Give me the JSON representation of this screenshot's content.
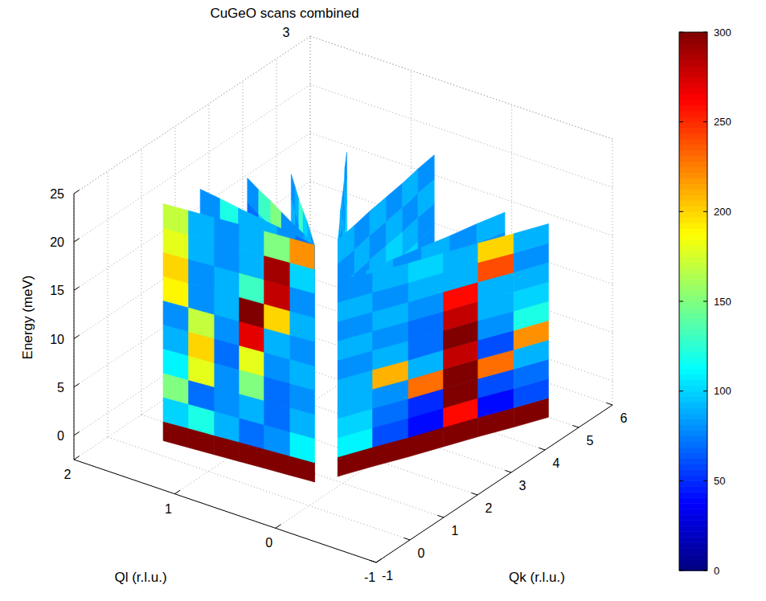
{
  "chart_data": {
    "type": "surface",
    "title": "CuGeO  scans combined",
    "subtitle": "3",
    "xlabel": "Ql (r.l.u.)",
    "ylabel": "Qk (r.l.u.)",
    "zlabel": "Energy (meV)",
    "xlim": [
      -1,
      2
    ],
    "ylim": [
      -1,
      6
    ],
    "zlim": [
      -2.5,
      25
    ],
    "xticks": [
      -1,
      0,
      1,
      2
    ],
    "yticks": [
      -1,
      0,
      1,
      2,
      3,
      4,
      5,
      6
    ],
    "zticks": [
      0,
      5,
      10,
      15,
      20,
      25
    ],
    "grid": true,
    "colorbar": {
      "range": [
        0,
        300
      ],
      "ticks": [
        0,
        50,
        100,
        150,
        200,
        250,
        300
      ]
    },
    "slices": [
      {
        "ql": [
          0.1,
          0.23,
          0.37,
          0.5,
          0.63,
          0.77,
          0.9
        ],
        "qk": [
          1.15,
          1.59,
          2.03,
          2.48,
          2.92,
          3.36,
          3.8
        ],
        "energy": [
          -2.5,
          -0.5,
          2,
          4.5,
          7,
          9.5,
          12,
          14.5,
          17,
          19.5,
          22
        ],
        "cells": [
          [
            300,
            300,
            300,
            300,
            300,
            300
          ],
          [
            130,
            90,
            70,
            60,
            70,
            80
          ],
          [
            100,
            80,
            70,
            60,
            70,
            90
          ],
          [
            90,
            110,
            200,
            170,
            90,
            80
          ],
          [
            80,
            90,
            100,
            190,
            110,
            80
          ],
          [
            90,
            80,
            90,
            100,
            160,
            90
          ],
          [
            80,
            90,
            80,
            90,
            110,
            100
          ],
          [
            90,
            80,
            90,
            80,
            90,
            100
          ],
          [
            80,
            90,
            80,
            90,
            80,
            90
          ],
          [
            90,
            80,
            90,
            80,
            90,
            80
          ]
        ]
      },
      {
        "ql": [
          0.1,
          0.13,
          0.17,
          0.2,
          0.23,
          0.27,
          0.3
        ],
        "qk": [
          1.15,
          1.73,
          2.3,
          2.88,
          3.45,
          4.03,
          4.6
        ],
        "energy": [
          -2.5,
          -0.5,
          2,
          4.5,
          7,
          9.5,
          12,
          14.5,
          17,
          19.5,
          22
        ],
        "cells": [
          [
            300,
            300,
            300,
            300,
            300,
            300
          ],
          [
            120,
            70,
            50,
            40,
            60,
            80
          ],
          [
            110,
            60,
            40,
            50,
            70,
            90
          ],
          [
            230,
            140,
            60,
            50,
            80,
            120
          ],
          [
            120,
            90,
            70,
            60,
            110,
            100
          ],
          [
            90,
            80,
            70,
            90,
            150,
            90
          ],
          [
            80,
            90,
            100,
            130,
            100,
            80
          ],
          [
            90,
            80,
            90,
            100,
            90,
            80
          ],
          [
            80,
            90,
            80,
            90,
            80,
            90
          ],
          [
            90,
            80,
            90,
            80,
            90,
            80
          ]
        ]
      },
      {
        "ql": [
          0.1,
          0.03,
          -0.03,
          -0.1,
          -0.17,
          -0.23,
          -0.3
        ],
        "qk": [
          1.15,
          1.78,
          2.4,
          3.03,
          3.65,
          4.28,
          4.9
        ],
        "energy": [
          -2.5,
          -0.5,
          1.5,
          3.5,
          5.5,
          7.5,
          9.5,
          11.5,
          13.5,
          15.5,
          17.5
        ],
        "cells": [
          [
            300,
            300,
            300,
            300,
            300,
            300
          ],
          [
            100,
            60,
            50,
            60,
            120,
            150
          ],
          [
            90,
            70,
            60,
            70,
            140,
            130
          ],
          [
            80,
            60,
            70,
            80,
            120,
            110
          ],
          [
            90,
            70,
            60,
            90,
            100,
            90
          ],
          [
            80,
            80,
            70,
            110,
            90,
            80
          ],
          [
            90,
            80,
            90,
            130,
            80,
            90
          ],
          [
            80,
            90,
            110,
            90,
            80,
            90
          ],
          [
            90,
            100,
            90,
            80,
            90,
            80
          ],
          [
            80,
            90,
            80,
            90,
            80,
            90
          ]
        ]
      },
      {
        "ql": [
          0.1,
          -0.03,
          -0.17,
          -0.3,
          -0.43,
          -0.57,
          -0.7
        ],
        "qk": [
          1.15,
          1.79,
          2.43,
          3.08,
          3.72,
          4.36,
          5.0
        ],
        "energy": [
          -2.5,
          -0.5,
          1.5,
          3.5,
          5.5,
          7.5,
          9.5,
          11.5,
          13.5,
          15.5,
          17.5
        ],
        "cells": [
          [
            300,
            300,
            300,
            300,
            300,
            300
          ],
          [
            110,
            60,
            40,
            260,
            40,
            60
          ],
          [
            100,
            70,
            50,
            300,
            60,
            70
          ],
          [
            90,
            80,
            230,
            300,
            230,
            90
          ],
          [
            90,
            210,
            90,
            280,
            60,
            220
          ],
          [
            80,
            90,
            70,
            300,
            80,
            120
          ],
          [
            90,
            80,
            70,
            280,
            90,
            100
          ],
          [
            80,
            90,
            80,
            260,
            90,
            90
          ],
          [
            90,
            80,
            90,
            90,
            240,
            80
          ],
          [
            80,
            90,
            100,
            90,
            200,
            90
          ]
        ]
      },
      {
        "ql": [
          0.2,
          0.34,
          0.48,
          0.63,
          0.77,
          0.91,
          1.05
        ],
        "qk": [
          0.75,
          1.06,
          1.37,
          1.68,
          1.98,
          2.29,
          2.6
        ],
        "energy": [
          -2.5,
          -0.5,
          2,
          4.5,
          7,
          9.5,
          12,
          14.5,
          17,
          19.5,
          22
        ],
        "cells": [
          [
            300,
            300,
            300,
            300,
            300,
            300
          ],
          [
            140,
            90,
            80,
            70,
            90,
            80
          ],
          [
            120,
            80,
            90,
            80,
            70,
            90
          ],
          [
            100,
            90,
            80,
            90,
            80,
            70
          ],
          [
            90,
            150,
            90,
            80,
            90,
            80
          ],
          [
            80,
            190,
            90,
            70,
            80,
            90
          ],
          [
            90,
            140,
            160,
            80,
            90,
            80
          ],
          [
            80,
            90,
            200,
            90,
            70,
            80
          ],
          [
            90,
            80,
            170,
            120,
            80,
            90
          ],
          [
            80,
            90,
            100,
            130,
            90,
            80
          ]
        ]
      },
      {
        "ql": [
          0.2,
          0.38,
          0.57,
          0.75,
          0.93,
          1.12,
          1.3
        ],
        "qk": [
          0.75,
          0.97,
          1.18,
          1.4,
          1.62,
          1.83,
          2.05
        ],
        "energy": [
          -2.5,
          -0.5,
          2,
          4.5,
          7,
          9.5,
          12,
          14.5,
          17,
          19.5,
          22
        ],
        "cells": [
          [
            300,
            300,
            300,
            300,
            300,
            300
          ],
          [
            130,
            80,
            70,
            90,
            80,
            70
          ],
          [
            110,
            90,
            80,
            70,
            90,
            80
          ],
          [
            90,
            180,
            80,
            80,
            70,
            90
          ],
          [
            80,
            220,
            90,
            80,
            80,
            70
          ],
          [
            90,
            110,
            200,
            90,
            70,
            80
          ],
          [
            80,
            90,
            240,
            110,
            80,
            90
          ],
          [
            70,
            80,
            130,
            270,
            90,
            80
          ],
          [
            80,
            90,
            90,
            280,
            100,
            70
          ],
          [
            90,
            80,
            80,
            150,
            130,
            80
          ]
        ]
      },
      {
        "ql": [
          0.2,
          0.42,
          0.63,
          0.85,
          1.07,
          1.28,
          1.5
        ],
        "qk": [
          0.75,
          0.83,
          0.92,
          1.0,
          1.08,
          1.17,
          1.25
        ],
        "energy": [
          -2.5,
          -0.5,
          2,
          4.5,
          7,
          9.5,
          12,
          14.5,
          17,
          19.5,
          22
        ],
        "cells": [
          [
            300,
            300,
            300,
            300,
            300,
            300
          ],
          [
            120,
            90,
            80,
            70,
            80,
            90
          ],
          [
            100,
            170,
            80,
            70,
            90,
            80
          ],
          [
            90,
            220,
            90,
            80,
            70,
            90
          ],
          [
            80,
            150,
            160,
            80,
            90,
            70
          ],
          [
            70,
            90,
            230,
            90,
            80,
            90
          ],
          [
            80,
            80,
            170,
            140,
            80,
            80
          ],
          [
            90,
            70,
            90,
            240,
            90,
            80
          ],
          [
            80,
            90,
            80,
            180,
            110,
            90
          ],
          [
            70,
            80,
            90,
            90,
            120,
            80
          ]
        ]
      },
      {
        "ql": [
          0.2,
          0.43,
          0.67,
          0.9,
          1.13,
          1.37,
          1.6
        ],
        "qk": [
          0.75,
          0.7,
          0.65,
          0.6,
          0.55,
          0.5,
          0.45
        ],
        "energy": [
          -2.5,
          -0.5,
          2,
          4.5,
          7,
          9.5,
          12,
          14.5,
          17,
          19.5,
          22
        ],
        "cells": [
          [
            300,
            300,
            300,
            300,
            300,
            300
          ],
          [
            110,
            80,
            70,
            90,
            120,
            100
          ],
          [
            90,
            70,
            90,
            80,
            70,
            150
          ],
          [
            80,
            70,
            150,
            80,
            180,
            110
          ],
          [
            90,
            80,
            180,
            70,
            200,
            90
          ],
          [
            80,
            90,
            270,
            80,
            170,
            80
          ],
          [
            90,
            200,
            300,
            90,
            80,
            190
          ],
          [
            80,
            280,
            130,
            90,
            80,
            200
          ],
          [
            100,
            290,
            90,
            80,
            90,
            180
          ],
          [
            220,
            150,
            90,
            80,
            90,
            170
          ]
        ]
      }
    ]
  }
}
